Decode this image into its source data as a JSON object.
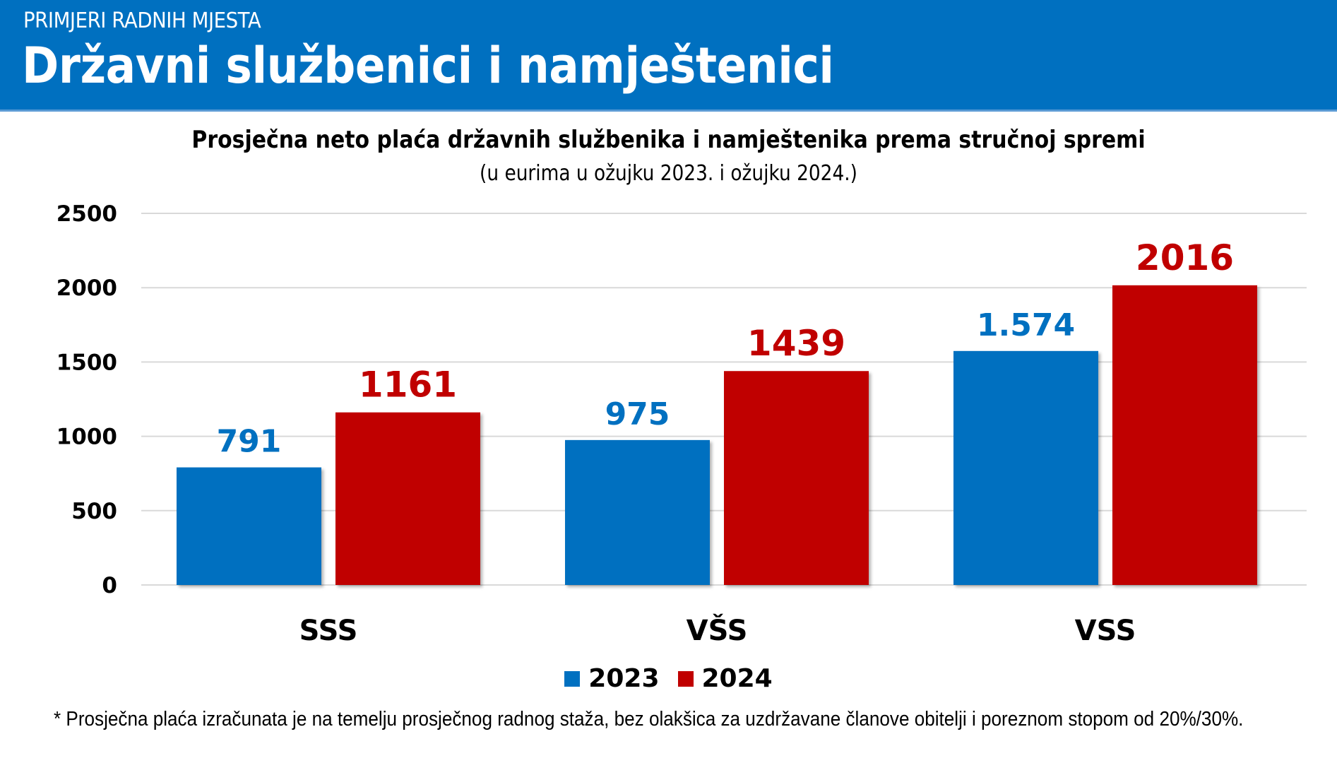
{
  "header": {
    "kicker": "PRIMJERI RADNIH MJESTA",
    "title": "Državni službenici i namještenici",
    "background_color": "#0070C0"
  },
  "chart_data": {
    "type": "bar",
    "title": "Prosječna neto plaća državnih službenika i namještenika prema stručnoj spremi",
    "subtitle": "(u eurima u ožujku 2023. i ožujku 2024.)",
    "xlabel": "",
    "ylabel": "",
    "categories": [
      "SSS",
      "VŠS",
      "VSS"
    ],
    "series": [
      {
        "name": "2023",
        "color": "#0070C0",
        "values": [
          791,
          975,
          1574
        ],
        "labels": [
          "791",
          "975",
          "1.574"
        ]
      },
      {
        "name": "2024",
        "color": "#C00000",
        "values": [
          1161,
          1439,
          2016
        ],
        "labels": [
          "1161",
          "1439",
          "2016"
        ]
      }
    ],
    "ylim": [
      0,
      2500
    ],
    "yticks": [
      0,
      500,
      1000,
      1500,
      2000,
      2500
    ],
    "ytick_labels": [
      "0",
      "500",
      "1000",
      "1500",
      "2000",
      "2500"
    ],
    "grid": true,
    "legend_position": "bottom"
  },
  "footnote": "* Prosječna plaća izračunata je na temelju prosječnog radnog staža, bez olakšica za uzdržavane članove obitelji i poreznom stopom od 20%/30%."
}
